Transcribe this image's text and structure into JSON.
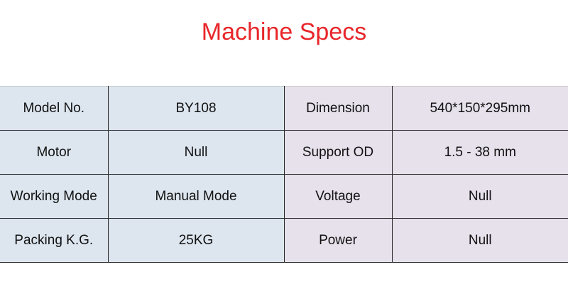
{
  "title": "Machine Specs",
  "rows": [
    {
      "k1": "Model No.",
      "v1": "BY108",
      "k2": "Dimension",
      "v2": "540*150*295mm"
    },
    {
      "k1": "Motor",
      "v1": "Null",
      "k2": "Support OD",
      "v2": "1.5 - 38 mm"
    },
    {
      "k1": "Working Mode",
      "v1": "Manual Mode",
      "k2": "Voltage",
      "v2": "Null"
    },
    {
      "k1": "Packing K.G.",
      "v1": "25KG",
      "k2": "Power",
      "v2": "Null"
    }
  ]
}
